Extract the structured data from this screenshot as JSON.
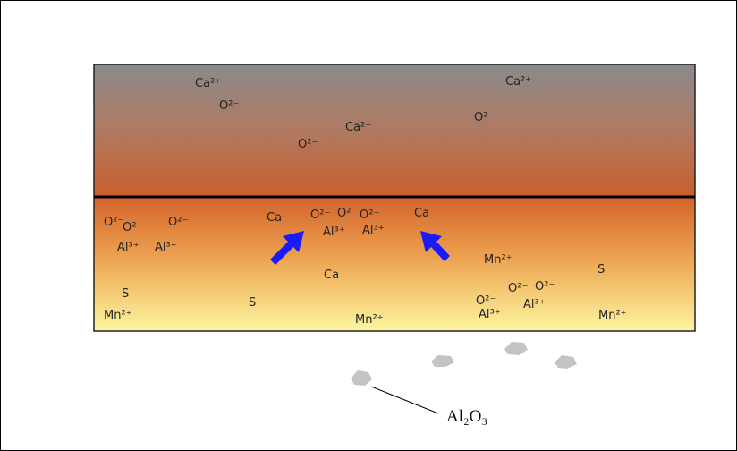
{
  "ions": [
    "Ca²⁺",
    "O²⁻",
    "Ca²⁺",
    "O²⁻",
    "Ca²⁺",
    "O²⁻",
    "O²⁻",
    "O²⁻",
    "O²⁻",
    "Al³⁺",
    "Al³⁺",
    "Ca",
    "O²⁻",
    "O²",
    "O²⁻",
    "Al³⁺",
    "Al³⁺",
    "Ca",
    "Ca",
    "Mn²⁺",
    "S",
    "S",
    "Mn²⁺",
    "S",
    "Mn²⁺",
    "O²⁻",
    "O²⁻",
    "O²⁻",
    "Al³⁺",
    "Al³⁺",
    "Mn²⁺"
  ],
  "inclusion_label": "Al₂O₃"
}
